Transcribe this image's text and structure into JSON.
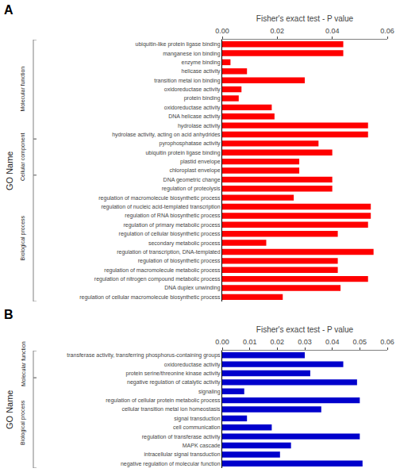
{
  "chart_data": [
    {
      "type": "bar",
      "orientation": "horizontal",
      "title": "A",
      "x_label": "Fisher's exact test - P value",
      "y_label": "GO Name",
      "categories": [
        "ubiquitin-like protein ligase binding",
        "manganese ion binding",
        "enzyme binding",
        "helicase activity",
        "transition metal ion binding",
        "oxidoreductase activity",
        "protein binding",
        "oxidoreductase activity",
        "DNA helicase activity",
        "hydrolase activity",
        "hydrolase activity, acting on acid anhydrides",
        "pyrophosphatase activity",
        "ubiquitin protein ligase binding",
        "plastid envelope",
        "chloroplast envelope",
        "DNA geometric change",
        "regulation of proteolysis",
        "regulation of macromolecule biosynthetic process",
        "regulation of nucleic acid-templated transcription",
        "regulation of RNA biosynthetic process",
        "regulation of primary metabolic process",
        "regulation of cellular biosynthetic process",
        "secondary metabolic process",
        "regulation of transcription, DNA-templated",
        "regulation of biosynthetic process",
        "regulation of macromolecule metabolic process",
        "regulation of nitrogen compound metabolic process",
        "DNA duplex unwinding",
        "regulation of cellular macromolecule biosynthetic process"
      ],
      "groups": [
        "Molecular function",
        "Molecular function",
        "Molecular function",
        "Molecular function",
        "Molecular function",
        "Molecular function",
        "Molecular function",
        "Molecular function",
        "Molecular function",
        "Molecular function",
        "Molecular function",
        "Cellular component",
        "Cellular component",
        "Cellular component",
        "Cellular component",
        "Biological process",
        "Biological process",
        "Biological process",
        "Biological process",
        "Biological process",
        "Biological process",
        "Biological process",
        "Biological process",
        "Biological process",
        "Biological process",
        "Biological process",
        "Biological process",
        "Biological process",
        "Biological process"
      ],
      "values": [
        0.044,
        0.044,
        0.003,
        0.009,
        0.03,
        0.007,
        0.006,
        0.018,
        0.019,
        0.053,
        0.053,
        0.035,
        0.04,
        0.028,
        0.028,
        0.04,
        0.04,
        0.026,
        0.054,
        0.054,
        0.053,
        0.042,
        0.016,
        0.055,
        0.042,
        0.042,
        0.053,
        0.043,
        0.022
      ],
      "color": "#FF0000",
      "xlim": [
        0,
        0.06
      ],
      "xticks": [
        {
          "value": 0,
          "label": "0.00"
        },
        0.02,
        0.04,
        0.06
      ],
      "grid": false
    },
    {
      "type": "bar",
      "orientation": "horizontal",
      "title": "B",
      "x_label": "Fisher's exact test - P value",
      "y_label": "GO Name",
      "categories": [
        "transferase activity, transferring phosphorus-containing groups",
        "oxidoreductase activity",
        "protein serine/threonine kinase activity",
        "negative regulation of catalytic activity",
        "signaling",
        "regulation of cellular protein metabolic process",
        "cellular transition metal ion homeostasis",
        "signal transduction",
        "cell communication",
        "regulation of transferase activity",
        "MAPK cascade",
        "intracellular signal transduction",
        "negative regulation of molecular function"
      ],
      "groups": [
        "Molecular function",
        "Molecular function",
        "Molecular function",
        "Biological process",
        "Biological process",
        "Biological process",
        "Biological process",
        "Biological process",
        "Biological process",
        "Biological process",
        "Biological process",
        "Biological process",
        "Biological process"
      ],
      "values": [
        0.03,
        0.044,
        0.032,
        0.049,
        0.008,
        0.05,
        0.036,
        0.009,
        0.018,
        0.05,
        0.025,
        0.021,
        0.051
      ],
      "color": "#0000CC",
      "xlim": [
        0,
        0.06
      ],
      "xticks": [
        {
          "value": 0,
          "label": "0.00"
        },
        0.01,
        0.02,
        0.03,
        0.04,
        0.05,
        0.06
      ],
      "grid": false
    }
  ]
}
